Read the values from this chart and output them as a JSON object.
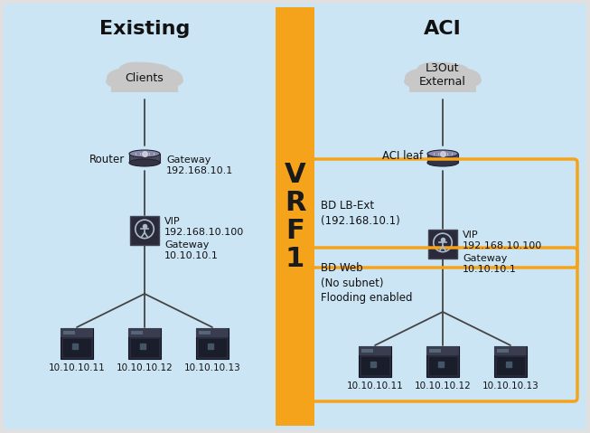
{
  "existing_label": "Existing",
  "aci_label": "ACI",
  "vrf_label": "V\nR\nF\n1",
  "bg_color": "#cce5f5",
  "outer_bg": "#d8d8d8",
  "vrf_color": "#f5a31a",
  "orange_box_color": "#f5a31a",
  "clients_label": "Clients",
  "l3out_label": "L3Out\nExternal",
  "router_label": "Router",
  "aci_leaf_label": "ACI leaf",
  "gw1_label": "Gateway\n192.168.10.1",
  "vip1_label": "VIP\n192.168.10.100",
  "gw2_label": "Gateway\n10.10.10.1",
  "bd_lbext_label": "BD LB-Ext\n(192.168.10.1)",
  "vip2_label": "VIP\n192.168.10.100",
  "bd_web_label": "BD Web\n(No subnet)\nFlooding enabled",
  "gw3_label": "Gateway\n10.10.10.1",
  "servers_left": [
    "10.10.10.11",
    "10.10.10.12",
    "10.10.10.13"
  ],
  "servers_right": [
    "10.10.10.11",
    "10.10.10.12",
    "10.10.10.13"
  ]
}
